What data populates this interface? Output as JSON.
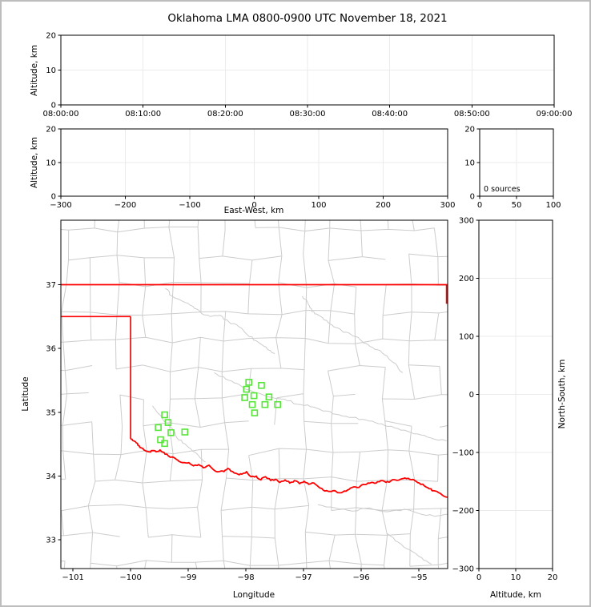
{
  "title": "Oklahoma LMA 0800-0900 UTC November 18, 2021",
  "colors": {
    "state_border": "#ff0000",
    "county_line": "#cccccc",
    "river_line": "#cccccc",
    "station_marker": "#55e637",
    "gridline": "#ebebeb",
    "axis": "#000000"
  },
  "chart_data": [
    {
      "id": "time_height",
      "type": "scatter",
      "xlabel": "",
      "ylabel": "Altitude, km",
      "xlim": [
        0,
        60
      ],
      "xtick_values": [
        0,
        10,
        20,
        30,
        40,
        50,
        60
      ],
      "xtick_labels": [
        "08:00:00",
        "08:10:00",
        "08:20:00",
        "08:30:00",
        "08:40:00",
        "08:50:00",
        "09:00:00"
      ],
      "ylim": [
        0,
        20
      ],
      "ytick_values": [
        0,
        10,
        20
      ],
      "ytick_labels": [
        "0",
        "10",
        "20"
      ],
      "points": []
    },
    {
      "id": "ew_height",
      "type": "scatter",
      "xlabel": "East-West, km",
      "ylabel": "Altitude, km",
      "xlim": [
        -300,
        300
      ],
      "xtick_values": [
        -300,
        -200,
        -100,
        0,
        100,
        200,
        300
      ],
      "xtick_labels": [
        "−300",
        "−200",
        "−100",
        "0",
        "100",
        "200",
        "300"
      ],
      "ylim": [
        0,
        20
      ],
      "ytick_values": [
        0,
        10,
        20
      ],
      "ytick_labels": [
        "0",
        "10",
        "20"
      ],
      "points": []
    },
    {
      "id": "histogram",
      "type": "line",
      "xlabel": "",
      "ylabel": "",
      "annotation": "0 sources",
      "xlim": [
        0,
        100
      ],
      "xtick_values": [
        0,
        50,
        100
      ],
      "xtick_labels": [
        "0",
        "50",
        "100"
      ],
      "ylim": [
        0,
        20
      ],
      "ytick_values": [
        0,
        10,
        20
      ],
      "ytick_labels": [
        "0",
        "10",
        "20"
      ],
      "points": []
    },
    {
      "id": "plan_view",
      "type": "scatter",
      "xlabel": "Longitude",
      "ylabel": "Latitude",
      "xlim": [
        -101.21,
        -94.5
      ],
      "xtick_values": [
        -101,
        -100,
        -99,
        -98,
        -97,
        -96,
        -95
      ],
      "xtick_labels": [
        "−101",
        "−100",
        "−99",
        "−98",
        "−97",
        "−96",
        "−95"
      ],
      "ylim": [
        32.55,
        38.01
      ],
      "ytick_values": [
        33,
        34,
        35,
        36,
        37
      ],
      "ytick_labels": [
        "33",
        "34",
        "35",
        "36",
        "37"
      ],
      "stations": [
        [
          -99.41,
          34.96
        ],
        [
          -99.35,
          34.84
        ],
        [
          -99.52,
          34.76
        ],
        [
          -99.3,
          34.68
        ],
        [
          -99.06,
          34.69
        ],
        [
          -99.48,
          34.57
        ],
        [
          -99.41,
          34.51
        ],
        [
          -97.95,
          35.47
        ],
        [
          -97.73,
          35.42
        ],
        [
          -97.99,
          35.36
        ],
        [
          -97.86,
          35.26
        ],
        [
          -98.02,
          35.23
        ],
        [
          -97.6,
          35.24
        ],
        [
          -97.89,
          35.12
        ],
        [
          -97.67,
          35.12
        ],
        [
          -97.45,
          35.12
        ],
        [
          -97.85,
          34.99
        ]
      ],
      "state_border": {
        "straight_segments": [
          {
            "name": "oklahoma-kansas-border-37N",
            "points": [
              [
                -101.21,
                37.0
              ],
              [
                -94.5,
                37.0
              ]
            ]
          },
          {
            "name": "panhandle-south-border-36.5N",
            "points": [
              [
                -101.21,
                36.5
              ],
              [
                -100.0,
                36.5
              ]
            ]
          },
          {
            "name": "west-border-100W",
            "points": [
              [
                -100.0,
                36.5
              ],
              [
                -100.0,
                34.58
              ]
            ]
          },
          {
            "name": "east-border",
            "points": [
              [
                -94.52,
                37.0
              ],
              [
                -94.52,
                36.7
              ]
            ]
          }
        ],
        "red_river": [
          [
            -100.0,
            34.58
          ],
          [
            -99.94,
            34.55
          ],
          [
            -99.88,
            34.51
          ],
          [
            -99.84,
            34.45
          ],
          [
            -99.77,
            34.41
          ],
          [
            -99.68,
            34.38
          ],
          [
            -99.62,
            34.4
          ],
          [
            -99.56,
            34.38
          ],
          [
            -99.49,
            34.41
          ],
          [
            -99.42,
            34.37
          ],
          [
            -99.35,
            34.32
          ],
          [
            -99.23,
            34.28
          ],
          [
            -99.16,
            34.23
          ],
          [
            -99.07,
            34.21
          ],
          [
            -98.99,
            34.21
          ],
          [
            -98.91,
            34.16
          ],
          [
            -98.82,
            34.18
          ],
          [
            -98.74,
            34.13
          ],
          [
            -98.64,
            34.17
          ],
          [
            -98.55,
            34.09
          ],
          [
            -98.46,
            34.07
          ],
          [
            -98.38,
            34.07
          ],
          [
            -98.31,
            34.12
          ],
          [
            -98.23,
            34.07
          ],
          [
            -98.14,
            34.03
          ],
          [
            -98.07,
            34.03
          ],
          [
            -97.99,
            34.07
          ],
          [
            -97.91,
            33.99
          ],
          [
            -97.82,
            34.0
          ],
          [
            -97.74,
            33.94
          ],
          [
            -97.66,
            33.99
          ],
          [
            -97.57,
            33.93
          ],
          [
            -97.49,
            33.95
          ],
          [
            -97.41,
            33.9
          ],
          [
            -97.32,
            33.94
          ],
          [
            -97.24,
            33.89
          ],
          [
            -97.16,
            33.93
          ],
          [
            -97.07,
            33.88
          ],
          [
            -96.99,
            33.92
          ],
          [
            -96.91,
            33.87
          ],
          [
            -96.82,
            33.89
          ],
          [
            -96.74,
            33.83
          ],
          [
            -96.66,
            33.78
          ],
          [
            -96.57,
            33.76
          ],
          [
            -96.49,
            33.77
          ],
          [
            -96.41,
            33.74
          ],
          [
            -96.32,
            33.75
          ],
          [
            -96.24,
            33.78
          ],
          [
            -96.16,
            33.82
          ],
          [
            -96.07,
            33.82
          ],
          [
            -95.99,
            33.86
          ],
          [
            -95.91,
            33.87
          ],
          [
            -95.82,
            33.9
          ],
          [
            -95.74,
            33.89
          ],
          [
            -95.66,
            33.93
          ],
          [
            -95.57,
            33.9
          ],
          [
            -95.49,
            33.92
          ],
          [
            -95.41,
            33.94
          ],
          [
            -95.32,
            33.95
          ],
          [
            -95.24,
            33.97
          ],
          [
            -95.16,
            33.95
          ],
          [
            -95.07,
            33.93
          ],
          [
            -94.99,
            33.89
          ],
          [
            -94.91,
            33.85
          ],
          [
            -94.82,
            33.8
          ],
          [
            -94.74,
            33.77
          ],
          [
            -94.66,
            33.74
          ],
          [
            -94.59,
            33.7
          ],
          [
            -94.5,
            33.67
          ]
        ]
      },
      "rivers": [
        [
          [
            -99.4,
            36.94
          ],
          [
            -99.28,
            36.82
          ],
          [
            -99.1,
            36.74
          ],
          [
            -98.92,
            36.66
          ],
          [
            -98.77,
            36.55
          ],
          [
            -98.62,
            36.5
          ],
          [
            -98.45,
            36.52
          ],
          [
            -98.3,
            36.42
          ],
          [
            -98.12,
            36.34
          ],
          [
            -97.98,
            36.22
          ],
          [
            -97.82,
            36.12
          ],
          [
            -97.65,
            36.02
          ],
          [
            -97.5,
            35.92
          ]
        ],
        [
          [
            -97.02,
            36.82
          ],
          [
            -96.92,
            36.7
          ],
          [
            -96.86,
            36.58
          ],
          [
            -96.74,
            36.52
          ],
          [
            -96.6,
            36.44
          ],
          [
            -96.48,
            36.34
          ],
          [
            -96.34,
            36.28
          ],
          [
            -96.18,
            36.22
          ],
          [
            -96.02,
            36.14
          ],
          [
            -95.88,
            36.06
          ],
          [
            -95.72,
            35.98
          ],
          [
            -95.55,
            35.88
          ],
          [
            -95.4,
            35.76
          ],
          [
            -95.28,
            35.62
          ]
        ],
        [
          [
            -98.55,
            35.62
          ],
          [
            -98.35,
            35.52
          ],
          [
            -98.15,
            35.45
          ],
          [
            -97.95,
            35.35
          ],
          [
            -97.72,
            35.28
          ],
          [
            -97.5,
            35.22
          ],
          [
            -97.28,
            35.18
          ],
          [
            -97.05,
            35.12
          ],
          [
            -96.82,
            35.08
          ],
          [
            -96.6,
            35.02
          ],
          [
            -96.38,
            34.96
          ],
          [
            -96.15,
            34.92
          ],
          [
            -95.92,
            34.88
          ],
          [
            -95.7,
            34.82
          ],
          [
            -95.48,
            34.78
          ],
          [
            -95.25,
            34.72
          ],
          [
            -95.02,
            34.66
          ],
          [
            -94.8,
            34.6
          ],
          [
            -94.52,
            34.55
          ]
        ],
        [
          [
            -99.62,
            35.1
          ],
          [
            -99.52,
            34.98
          ],
          [
            -99.42,
            34.86
          ],
          [
            -99.3,
            34.76
          ],
          [
            -99.22,
            34.64
          ],
          [
            -99.1,
            34.52
          ],
          [
            -98.95,
            34.42
          ],
          [
            -98.82,
            34.32
          ],
          [
            -98.7,
            34.22
          ]
        ],
        [
          [
            -96.75,
            33.55
          ],
          [
            -96.45,
            33.5
          ],
          [
            -96.15,
            33.45
          ],
          [
            -95.85,
            33.5
          ],
          [
            -95.55,
            33.44
          ],
          [
            -95.25,
            33.48
          ],
          [
            -94.95,
            33.4
          ],
          [
            -94.65,
            33.38
          ],
          [
            -94.5,
            33.4
          ]
        ],
        [
          [
            -95.55,
            33.1
          ],
          [
            -95.35,
            32.96
          ],
          [
            -95.15,
            32.84
          ],
          [
            -94.95,
            32.72
          ],
          [
            -94.78,
            32.62
          ]
        ]
      ]
    },
    {
      "id": "ns_height",
      "type": "scatter",
      "xlabel": "Altitude, km",
      "ylabel": "North-South, km",
      "xlim": [
        0,
        20
      ],
      "xtick_values": [
        0,
        10,
        20
      ],
      "xtick_labels": [
        "0",
        "10",
        "20"
      ],
      "ylim": [
        -300,
        300
      ],
      "ytick_values": [
        -300,
        -200,
        -100,
        0,
        100,
        200,
        300
      ],
      "ytick_labels": [
        "−300",
        "−200",
        "−100",
        "0",
        "100",
        "200",
        "300"
      ],
      "points": []
    }
  ]
}
